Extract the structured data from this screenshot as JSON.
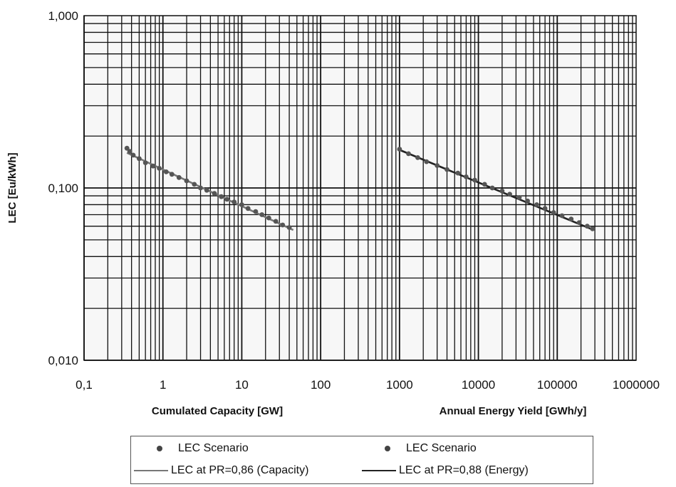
{
  "chart_data": {
    "type": "scatter",
    "y_scale": "log",
    "x_scale": "log",
    "ylabel": "LEC [Eu/kWh]",
    "ylim": [
      0.01,
      1
    ],
    "y_ticks": [
      "0,010",
      "0,100",
      "1,000"
    ],
    "x_ticks": [
      "0,1",
      "1",
      "10",
      "100",
      "1000",
      "10000",
      "100000",
      "1000000"
    ],
    "xlabels": [
      "Cumulated Capacity [GW]",
      "Annual Energy Yield [GWh/y]"
    ],
    "grid": true,
    "legend_position": "bottom",
    "series": [
      {
        "name": "LEC Scenario",
        "kind": "markers",
        "color": "#555555",
        "x": [
          0.35,
          0.38,
          0.42,
          0.5,
          0.6,
          0.75,
          0.9,
          1.1,
          1.3,
          1.6,
          2.0,
          2.5,
          3.0,
          3.6,
          4.5,
          5.5,
          6.5,
          8,
          10,
          12,
          15,
          18,
          22,
          27,
          33,
          40
        ],
        "y": [
          0.17,
          0.163,
          0.155,
          0.148,
          0.14,
          0.134,
          0.13,
          0.124,
          0.12,
          0.115,
          0.11,
          0.105,
          0.1,
          0.097,
          0.093,
          0.089,
          0.086,
          0.083,
          0.08,
          0.076,
          0.073,
          0.07,
          0.067,
          0.064,
          0.061,
          0.059
        ]
      },
      {
        "name": "LEC Scenario",
        "kind": "markers",
        "color": "#555555",
        "x": [
          1000,
          1300,
          1700,
          2200,
          3000,
          4000,
          5500,
          7000,
          9000,
          12000,
          15000,
          20000,
          25000,
          33000,
          42000,
          55000,
          70000,
          90000,
          115000,
          150000,
          190000,
          240000,
          280000
        ],
        "y": [
          0.168,
          0.158,
          0.15,
          0.142,
          0.135,
          0.128,
          0.122,
          0.116,
          0.111,
          0.105,
          0.1,
          0.096,
          0.092,
          0.088,
          0.084,
          0.08,
          0.076,
          0.072,
          0.069,
          0.066,
          0.063,
          0.06,
          0.058
        ]
      },
      {
        "name": "LEC at PR=0,86 (Capacity)",
        "kind": "line",
        "color": "#777777",
        "x": [
          0.35,
          45
        ],
        "y": [
          0.16,
          0.057
        ]
      },
      {
        "name": "LEC at PR=0,88 (Energy)",
        "kind": "line",
        "color": "#222222",
        "x": [
          950,
          290000
        ],
        "y": [
          0.168,
          0.057
        ]
      }
    ]
  }
}
